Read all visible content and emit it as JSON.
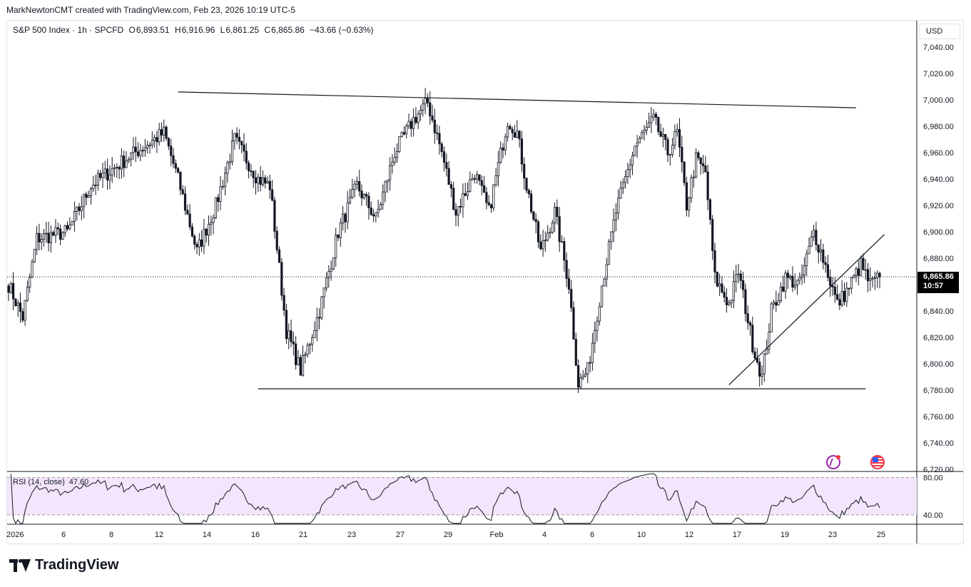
{
  "header": {
    "credit": "MarkNewtonCMT created with TradingView.com, Feb 23, 2026 10:19 UTC-5"
  },
  "legend": {
    "symbol": "S&P 500 Index · 1h · SPCFD",
    "o_label": "O",
    "o": "6,893.51",
    "h_label": "H",
    "h": "6,916.96",
    "l_label": "L",
    "l": "6,861.25",
    "c_label": "C",
    "c": "6,865.86",
    "change": "−43.66 (−0.63%)"
  },
  "currency": "USD",
  "last_price": {
    "price": "6,865.86",
    "countdown": "10:57"
  },
  "rsi": {
    "label": "RSI (14, close)",
    "value": "47.60",
    "levels": [
      "80.00",
      "40.00"
    ]
  },
  "brand": "TradingView",
  "icons": {
    "flash": "flash-icon",
    "flag": "us-flag-icon"
  },
  "colors": {
    "up": "#131722",
    "down": "#131722",
    "rsi_line": "#131722",
    "rsi_band": "#f3e5fc",
    "price_tag": "#000000"
  },
  "chart_data": [
    {
      "type": "candlestick",
      "title": "",
      "ylim": [
        6720,
        7050
      ],
      "yticks": [
        6720,
        6740,
        6760,
        6780,
        6800,
        6820,
        6840,
        6860,
        6880,
        6900,
        6920,
        6940,
        6960,
        6980,
        7000,
        7020,
        7040
      ],
      "ytick_labels": [
        "6,720.00",
        "6,740.00",
        "6,760.00",
        "6,780.00",
        "6,800.00",
        "6,820.00",
        "6,840.00",
        "6,860.00",
        "6,880.00",
        "6,900.00",
        "6,920.00",
        "6,940.00",
        "6,960.00",
        "6,980.00",
        "7,000.00",
        "7,020.00",
        "7,040.00"
      ],
      "xtick_labels": [
        "2026",
        "6",
        "8",
        "12",
        "14",
        "16",
        "21",
        "23",
        "27",
        "29",
        "Feb",
        "4",
        "6",
        "10",
        "12",
        "17",
        "19",
        "23",
        "25"
      ],
      "last_close": 6865.86,
      "anchors": [
        [
          0,
          6860
        ],
        [
          6,
          6835
        ],
        [
          12,
          6895
        ],
        [
          25,
          6900
        ],
        [
          35,
          6935
        ],
        [
          52,
          6958
        ],
        [
          66,
          6975
        ],
        [
          72,
          6940
        ],
        [
          80,
          6885
        ],
        [
          88,
          6920
        ],
        [
          96,
          6970
        ],
        [
          106,
          6940
        ],
        [
          111,
          6935
        ],
        [
          118,
          6825
        ],
        [
          124,
          6795
        ],
        [
          132,
          6840
        ],
        [
          140,
          6900
        ],
        [
          148,
          6935
        ],
        [
          156,
          6910
        ],
        [
          164,
          6960
        ],
        [
          172,
          6985
        ],
        [
          178,
          6998
        ],
        [
          184,
          6960
        ],
        [
          190,
          6915
        ],
        [
          198,
          6945
        ],
        [
          204,
          6915
        ],
        [
          212,
          6985
        ],
        [
          216,
          6975
        ],
        [
          220,
          6935
        ],
        [
          226,
          6885
        ],
        [
          232,
          6915
        ],
        [
          238,
          6860
        ],
        [
          242,
          6785
        ],
        [
          246,
          6795
        ],
        [
          252,
          6860
        ],
        [
          258,
          6915
        ],
        [
          266,
          6965
        ],
        [
          274,
          6985
        ],
        [
          280,
          6960
        ],
        [
          284,
          6975
        ],
        [
          288,
          6920
        ],
        [
          292,
          6955
        ],
        [
          296,
          6945
        ],
        [
          300,
          6865
        ],
        [
          306,
          6845
        ],
        [
          310,
          6870
        ],
        [
          316,
          6815
        ],
        [
          320,
          6790
        ],
        [
          324,
          6840
        ],
        [
          330,
          6865
        ],
        [
          336,
          6860
        ],
        [
          342,
          6900
        ],
        [
          346,
          6880
        ],
        [
          352,
          6845
        ],
        [
          356,
          6855
        ],
        [
          362,
          6875
        ],
        [
          366,
          6860
        ],
        [
          370,
          6865
        ]
      ],
      "annotations": [
        {
          "type": "trendline",
          "from": [
            72,
            7006
          ],
          "to": [
            360,
            6994
          ]
        },
        {
          "type": "trendline",
          "from": [
            106,
            6781
          ],
          "to": [
            364,
            6781
          ]
        },
        {
          "type": "trendline",
          "from": [
            306,
            6784
          ],
          "to": [
            372,
            6898
          ]
        }
      ]
    },
    {
      "type": "line",
      "name": "RSI (14, close)",
      "ylim": [
        30,
        85
      ],
      "bands": [
        80,
        40
      ],
      "last": 47.6
    }
  ]
}
